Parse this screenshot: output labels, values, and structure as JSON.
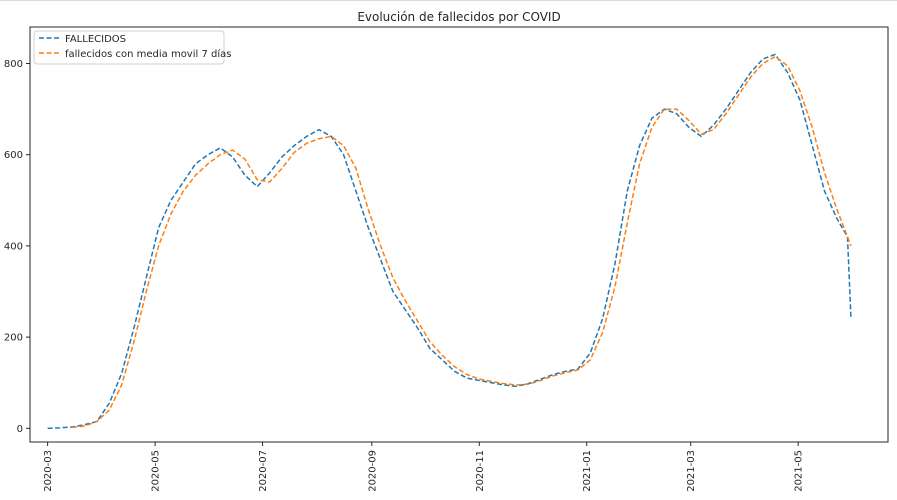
{
  "chart_data": {
    "type": "line",
    "title": "Evolución de fallecidos por COVID",
    "xlabel": "",
    "ylabel": "",
    "x_axis_type": "date",
    "xlim": [
      "2020-02-20",
      "2021-06-21"
    ],
    "ylim": [
      -30,
      880
    ],
    "x_ticks": [
      "2020-03",
      "2020-05",
      "2020-07",
      "2020-09",
      "2020-11",
      "2021-01",
      "2021-03",
      "2021-05"
    ],
    "y_ticks": [
      0,
      200,
      400,
      600,
      800
    ],
    "grid": false,
    "legend_position": "upper-left",
    "series": [
      {
        "name": "FALLECIDOS",
        "color": "#1f77b4",
        "line_style": "dashed",
        "x": [
          "2020-03-01",
          "2020-03-08",
          "2020-03-15",
          "2020-03-22",
          "2020-03-29",
          "2020-04-05",
          "2020-04-12",
          "2020-04-19",
          "2020-04-26",
          "2020-05-03",
          "2020-05-10",
          "2020-05-17",
          "2020-05-24",
          "2020-05-31",
          "2020-06-07",
          "2020-06-14",
          "2020-06-21",
          "2020-06-28",
          "2020-07-05",
          "2020-07-12",
          "2020-07-19",
          "2020-07-26",
          "2020-08-02",
          "2020-08-09",
          "2020-08-16",
          "2020-08-23",
          "2020-08-30",
          "2020-09-06",
          "2020-09-13",
          "2020-09-20",
          "2020-09-27",
          "2020-10-04",
          "2020-10-11",
          "2020-10-18",
          "2020-10-25",
          "2020-11-01",
          "2020-11-08",
          "2020-11-15",
          "2020-11-22",
          "2020-11-29",
          "2020-12-06",
          "2020-12-13",
          "2020-12-20",
          "2020-12-27",
          "2021-01-03",
          "2021-01-10",
          "2021-01-17",
          "2021-01-24",
          "2021-01-31",
          "2021-02-07",
          "2021-02-14",
          "2021-02-21",
          "2021-02-28",
          "2021-03-07",
          "2021-03-14",
          "2021-03-21",
          "2021-03-28",
          "2021-04-04",
          "2021-04-11",
          "2021-04-18",
          "2021-04-25",
          "2021-05-02",
          "2021-05-09",
          "2021-05-16",
          "2021-05-23",
          "2021-05-26",
          "2021-05-29",
          "2021-05-31"
        ],
        "values": [
          0,
          1,
          3,
          8,
          15,
          55,
          120,
          220,
          330,
          440,
          500,
          540,
          580,
          600,
          615,
          595,
          555,
          530,
          560,
          595,
          620,
          640,
          655,
          640,
          600,
          520,
          440,
          370,
          300,
          260,
          220,
          175,
          150,
          125,
          110,
          105,
          100,
          95,
          92,
          98,
          108,
          118,
          125,
          130,
          165,
          240,
          360,
          520,
          620,
          680,
          700,
          690,
          660,
          640,
          665,
          700,
          740,
          780,
          810,
          820,
          780,
          720,
          620,
          520,
          460,
          440,
          420,
          240
        ]
      },
      {
        "name": "fallecidos con media movil 7 días",
        "color": "#ff7f0e",
        "line_style": "dashed",
        "x": [
          "2020-03-15",
          "2020-03-22",
          "2020-03-29",
          "2020-04-05",
          "2020-04-12",
          "2020-04-19",
          "2020-04-26",
          "2020-05-03",
          "2020-05-10",
          "2020-05-17",
          "2020-05-24",
          "2020-05-31",
          "2020-06-07",
          "2020-06-14",
          "2020-06-21",
          "2020-06-28",
          "2020-07-05",
          "2020-07-12",
          "2020-07-19",
          "2020-07-26",
          "2020-08-02",
          "2020-08-09",
          "2020-08-16",
          "2020-08-23",
          "2020-08-30",
          "2020-09-06",
          "2020-09-13",
          "2020-09-20",
          "2020-09-27",
          "2020-10-04",
          "2020-10-11",
          "2020-10-18",
          "2020-10-25",
          "2020-11-01",
          "2020-11-08",
          "2020-11-15",
          "2020-11-22",
          "2020-11-29",
          "2020-12-06",
          "2020-12-13",
          "2020-12-20",
          "2020-12-27",
          "2021-01-03",
          "2021-01-10",
          "2021-01-17",
          "2021-01-24",
          "2021-01-31",
          "2021-02-07",
          "2021-02-14",
          "2021-02-21",
          "2021-02-28",
          "2021-03-07",
          "2021-03-14",
          "2021-03-21",
          "2021-03-28",
          "2021-04-04",
          "2021-04-11",
          "2021-04-18",
          "2021-04-25",
          "2021-05-02",
          "2021-05-09",
          "2021-05-16",
          "2021-05-23",
          "2021-05-31"
        ],
        "values": [
          2,
          5,
          15,
          40,
          95,
          190,
          300,
          400,
          470,
          520,
          555,
          580,
          600,
          610,
          590,
          545,
          540,
          570,
          605,
          625,
          635,
          640,
          620,
          570,
          480,
          400,
          330,
          280,
          235,
          190,
          160,
          135,
          118,
          108,
          103,
          98,
          95,
          97,
          105,
          115,
          122,
          128,
          150,
          210,
          310,
          450,
          580,
          660,
          700,
          700,
          675,
          645,
          655,
          690,
          730,
          770,
          800,
          815,
          795,
          740,
          660,
          560,
          480,
          400
        ]
      }
    ]
  }
}
